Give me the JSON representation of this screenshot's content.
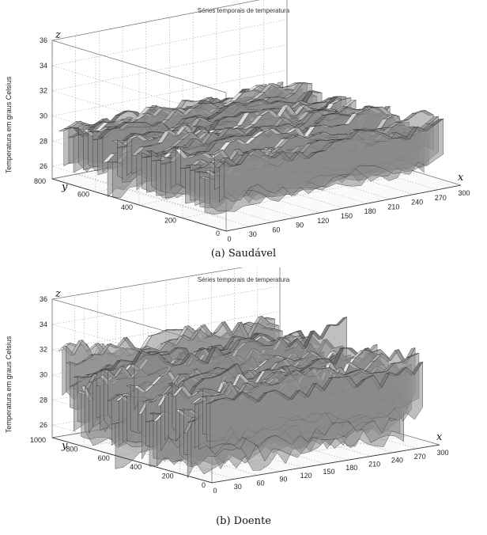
{
  "chart_data": [
    {
      "type": "surface3d",
      "title": "Séries temporais de temperatura",
      "caption": "(a) Saudável",
      "zlabel": "Temperatura em graus Celsius",
      "axis_letters": {
        "x": "x",
        "y": "y",
        "z": "z"
      },
      "x_ticks": [
        "0",
        "30",
        "60",
        "90",
        "120",
        "150",
        "180",
        "210",
        "240",
        "270",
        "300"
      ],
      "y_ticks": [
        "0",
        "200",
        "400",
        "600",
        "800"
      ],
      "z_ticks": [
        "26",
        "28",
        "30",
        "32",
        "34",
        "36"
      ],
      "xlim": [
        0,
        300
      ],
      "ylim": [
        0,
        800
      ],
      "zlim": [
        25,
        36
      ],
      "grid": true,
      "colormap": "gray"
    },
    {
      "type": "surface3d",
      "title": "Séries temporais de temperatura",
      "caption": "(b) Doente",
      "zlabel": "Temperatura em graus Celsius",
      "axis_letters": {
        "x": "x",
        "y": "y",
        "z": "z"
      },
      "x_ticks": [
        "0",
        "30",
        "60",
        "90",
        "120",
        "150",
        "180",
        "210",
        "240",
        "270",
        "300"
      ],
      "y_ticks": [
        "0",
        "200",
        "400",
        "600",
        "800",
        "1000"
      ],
      "z_ticks": [
        "26",
        "28",
        "30",
        "32",
        "34",
        "36"
      ],
      "xlim": [
        0,
        300
      ],
      "ylim": [
        0,
        1000
      ],
      "zlim": [
        25,
        36
      ],
      "grid": true,
      "colormap": "gray"
    }
  ]
}
